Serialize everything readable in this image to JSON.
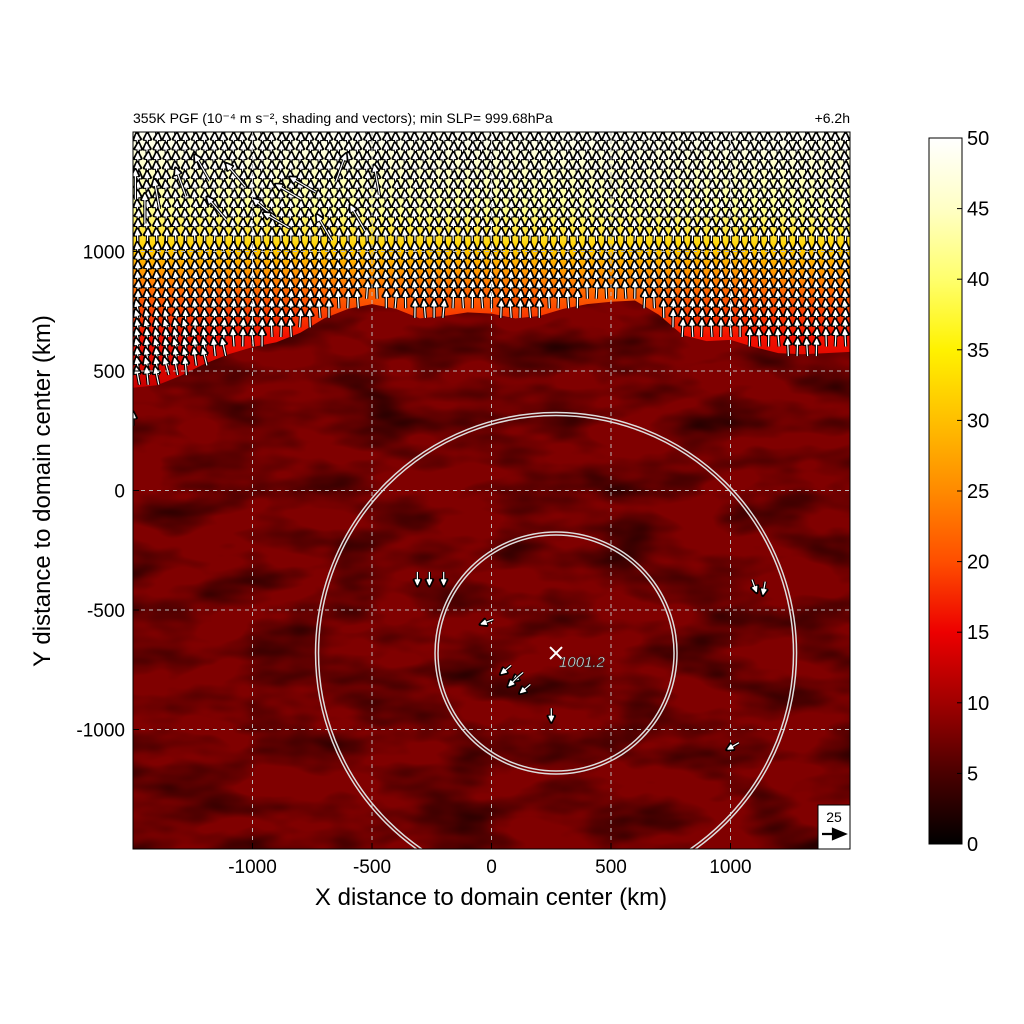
{
  "chart_data": {
    "type": "heatmap",
    "title": "355K PGF (10⁻⁴ m s⁻², shading and vectors); min SLP= 999.68hPa",
    "title_right": "+6.2h",
    "xlabel": "X distance to domain center (km)",
    "ylabel": "Y distance to domain center (km)",
    "xlim": [
      -1500,
      1500
    ],
    "ylim": [
      -1500,
      1500
    ],
    "x_ticks": [
      -1000,
      -500,
      0,
      500,
      1000
    ],
    "y_ticks": [
      -1000,
      -500,
      0,
      500,
      1000
    ],
    "x_tick_labels": [
      "-1000",
      "-500",
      "0",
      "500",
      "1000"
    ],
    "y_tick_labels": [
      "-1000",
      "-500",
      "0",
      "500",
      "1000"
    ],
    "grid": true,
    "colorbar": {
      "range": [
        0,
        50
      ],
      "ticks": [
        0,
        5,
        10,
        15,
        20,
        25,
        30,
        35,
        40,
        45,
        50
      ],
      "tick_labels": [
        "0",
        "5",
        "10",
        "15",
        "20",
        "25",
        "30",
        "35",
        "40",
        "45",
        "50"
      ],
      "colormap": "hot",
      "placement": "right"
    },
    "boundary_km": [
      [
        -1500,
        430
      ],
      [
        -1400,
        440
      ],
      [
        -1300,
        480
      ],
      [
        -1200,
        530
      ],
      [
        -1100,
        570
      ],
      [
        -1000,
        600
      ],
      [
        -900,
        620
      ],
      [
        -800,
        660
      ],
      [
        -700,
        720
      ],
      [
        -600,
        760
      ],
      [
        -500,
        780
      ],
      [
        -400,
        760
      ],
      [
        -300,
        720
      ],
      [
        -200,
        730
      ],
      [
        -100,
        745
      ],
      [
        0,
        740
      ],
      [
        100,
        720
      ],
      [
        200,
        730
      ],
      [
        300,
        760
      ],
      [
        400,
        780
      ],
      [
        500,
        790
      ],
      [
        600,
        795
      ],
      [
        700,
        735
      ],
      [
        800,
        650
      ],
      [
        900,
        625
      ],
      [
        1000,
        630
      ],
      [
        1100,
        600
      ],
      [
        1200,
        575
      ],
      [
        1300,
        570
      ],
      [
        1400,
        575
      ],
      [
        1500,
        580
      ]
    ],
    "strong_band_values": {
      "near_boundary": 15,
      "upper_band": 30,
      "top_band": 45
    },
    "background_value": 5,
    "vector_reference": {
      "label": "25",
      "magnitude": 25
    },
    "center_marker": {
      "x": 270,
      "y": -680,
      "label": "1001.2"
    },
    "range_circles": [
      {
        "center_x": 270,
        "center_y": -680,
        "radius": 500
      },
      {
        "center_x": 270,
        "center_y": -680,
        "radius": 1000
      }
    ],
    "isolated_vectors": [
      [
        -310,
        -370,
        180
      ],
      [
        -260,
        -370,
        180
      ],
      [
        -200,
        -370,
        180
      ],
      [
        -20,
        -550,
        250
      ],
      [
        60,
        -750,
        230
      ],
      [
        110,
        -780,
        230
      ],
      [
        90,
        -800,
        225
      ],
      [
        140,
        -830,
        230
      ],
      [
        250,
        -940,
        180
      ],
      [
        1100,
        -400,
        160
      ],
      [
        1140,
        -410,
        190
      ],
      [
        1010,
        -1070,
        240
      ],
      [
        -1500,
        300,
        0
      ]
    ],
    "strong_vectors": [
      [
        -1490,
        1280,
        0
      ],
      [
        -1450,
        1180,
        0
      ],
      [
        -1400,
        1240,
        350
      ],
      [
        -1300,
        1290,
        340
      ],
      [
        -1210,
        1350,
        330
      ],
      [
        -1150,
        1180,
        320
      ],
      [
        -1070,
        1320,
        320
      ],
      [
        -950,
        1180,
        310
      ],
      [
        -900,
        1130,
        300
      ],
      [
        -850,
        1250,
        300
      ],
      [
        -790,
        1280,
        300
      ],
      [
        -700,
        1100,
        330
      ],
      [
        -630,
        1350,
        20
      ],
      [
        -560,
        1140,
        330
      ],
      [
        -480,
        1300,
        350
      ]
    ]
  }
}
